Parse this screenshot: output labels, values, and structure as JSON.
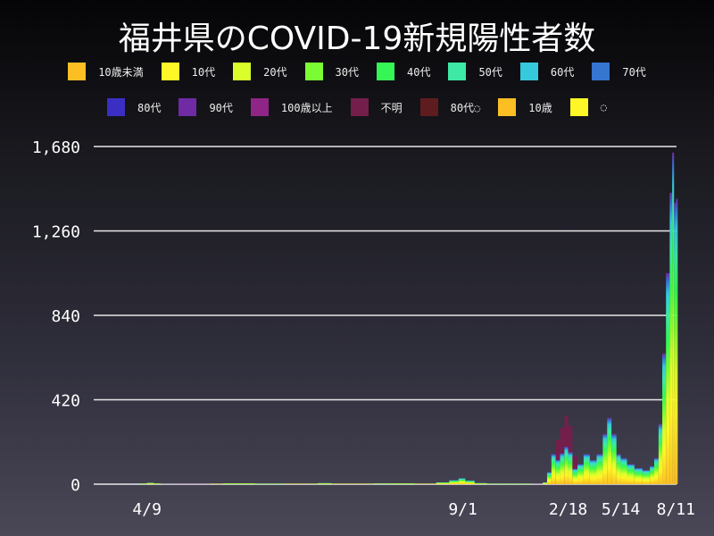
{
  "chart_data": {
    "type": "bar",
    "stacked": true,
    "title": "福井県のCOVID-19新規陽性者数",
    "xlabel": "",
    "ylabel": "",
    "ylim": [
      0,
      1680
    ],
    "yticks": [
      "0",
      "420",
      "840",
      "1,260",
      "1,680"
    ],
    "ytick_values": [
      0,
      420,
      840,
      1260,
      1680
    ],
    "xticks": [
      {
        "label": "4/9",
        "date": "2020-04-09"
      },
      {
        "label": "9/1",
        "date": "2021-09-01"
      },
      {
        "label": "2/18",
        "date": "2022-02-18"
      },
      {
        "label": "5/14",
        "date": "2022-05-14"
      },
      {
        "label": "8/11",
        "date": "2022-08-11"
      }
    ],
    "xlim": [
      "2020-01-14",
      "2022-08-12"
    ],
    "grid": true,
    "legend_position": "top",
    "legend": [
      {
        "name": "10歳未満",
        "color": "#fbbf24"
      },
      {
        "name": "10代",
        "color": "#fef626"
      },
      {
        "name": "20代",
        "color": "#d9fe2a"
      },
      {
        "name": "30代",
        "color": "#7bfb33"
      },
      {
        "name": "40代",
        "color": "#36f655"
      },
      {
        "name": "50代",
        "color": "#3de9a5"
      },
      {
        "name": "60代",
        "color": "#36c9dc"
      },
      {
        "name": "70代",
        "color": "#3675d0"
      },
      {
        "name": "80代",
        "color": "#3a2fc2"
      },
      {
        "name": "90代",
        "color": "#6f2aa4"
      },
      {
        "name": "100歳以上",
        "color": "#8e2587"
      },
      {
        "name": "不明",
        "color": "#741e4c"
      },
      {
        "name": "80代◌",
        "color": "#5f1c1f"
      },
      {
        "name": "10歳",
        "color": "#fbbf24"
      },
      {
        "name": "◌",
        "color": "#fef626"
      }
    ],
    "x": [
      "2020-03-28",
      "2020-04-09",
      "2020-04-20",
      "2020-05-01",
      "2020-07-20",
      "2020-08-10",
      "2020-10-01",
      "2020-11-15",
      "2021-01-10",
      "2021-02-01",
      "2021-04-10",
      "2021-05-10",
      "2021-06-15",
      "2021-07-20",
      "2021-08-10",
      "2021-08-25",
      "2021-09-05",
      "2021-09-20",
      "2021-10-10",
      "2021-12-20",
      "2022-01-08",
      "2022-01-15",
      "2022-01-22",
      "2022-01-29",
      "2022-02-05",
      "2022-02-12",
      "2022-02-18",
      "2022-02-25",
      "2022-03-05",
      "2022-03-15",
      "2022-03-25",
      "2022-04-05",
      "2022-04-15",
      "2022-04-22",
      "2022-04-29",
      "2022-05-07",
      "2022-05-14",
      "2022-05-24",
      "2022-06-05",
      "2022-06-18",
      "2022-06-30",
      "2022-07-07",
      "2022-07-14",
      "2022-07-20",
      "2022-07-26",
      "2022-08-01",
      "2022-08-05",
      "2022-08-08",
      "2022-08-11"
    ],
    "values": [
      4,
      8,
      5,
      1,
      3,
      5,
      2,
      3,
      6,
      3,
      4,
      5,
      3,
      10,
      20,
      30,
      18,
      6,
      2,
      1,
      10,
      60,
      150,
      220,
      280,
      340,
      290,
      140,
      100,
      150,
      120,
      150,
      250,
      330,
      250,
      150,
      130,
      100,
      80,
      70,
      90,
      130,
      300,
      650,
      1050,
      1450,
      1650,
      1400,
      1420
    ]
  }
}
